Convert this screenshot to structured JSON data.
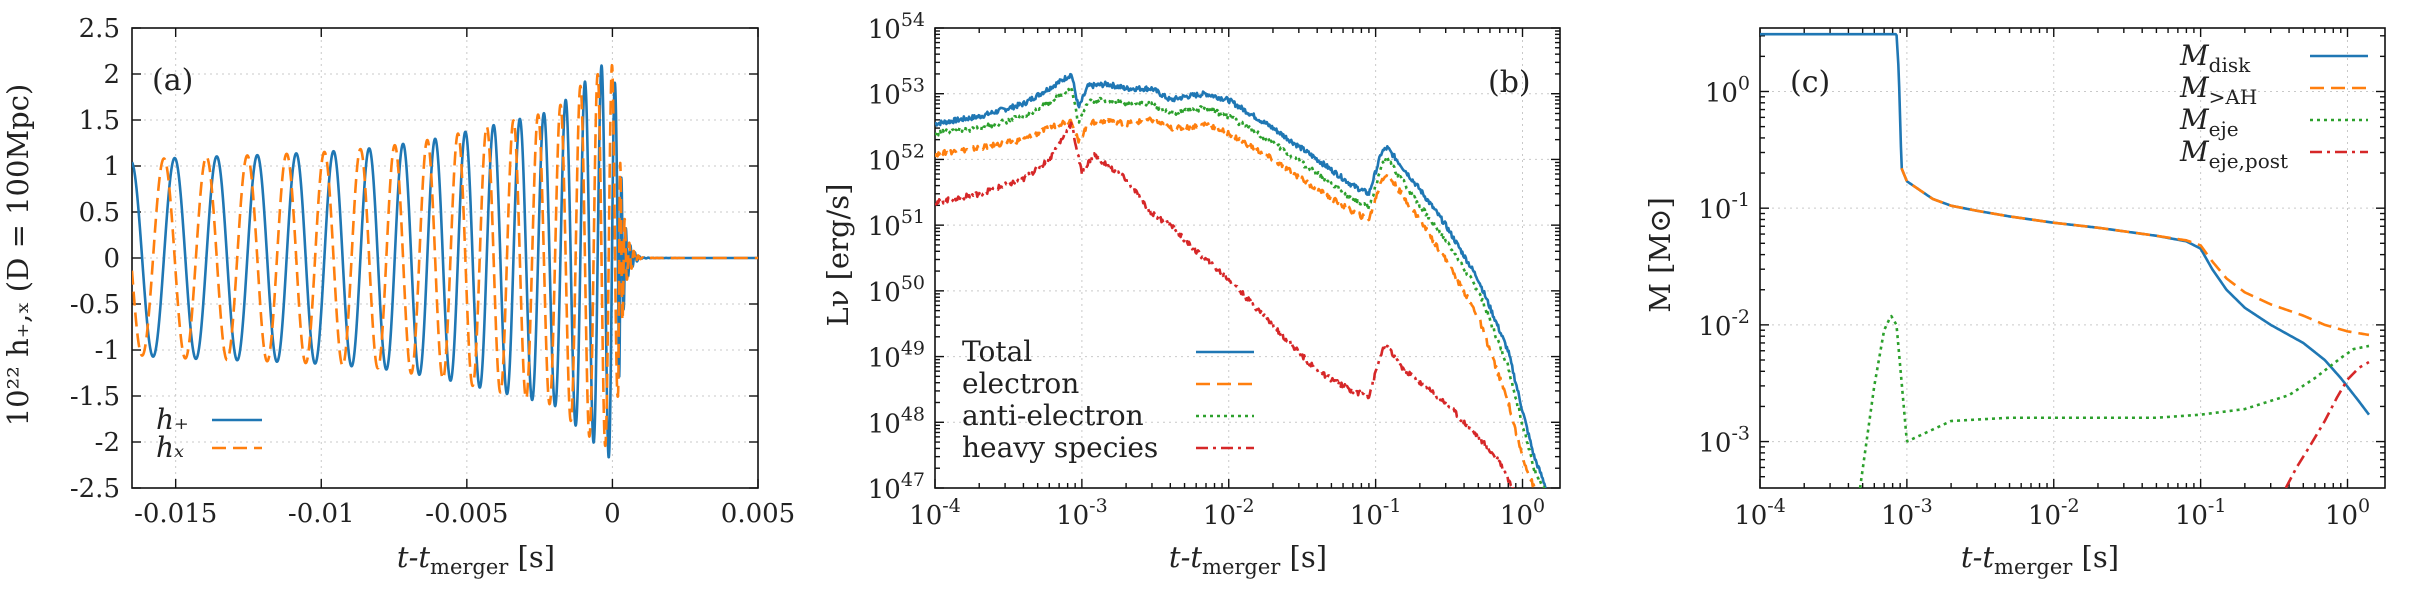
{
  "chart_data": [
    {
      "id": "a",
      "type": "line",
      "panel_tag": "(a)",
      "xlabel": {
        "base": "t-t",
        "sub": "merger",
        "unit": " [s]"
      },
      "ylabel": "10²² h₊,ₓ (D = 100Mpc)",
      "xscale": "linear",
      "yscale": "linear",
      "xlim": [
        -0.0165,
        0.005
      ],
      "ylim": [
        -2.5,
        2.5
      ],
      "xticks": [
        -0.015,
        -0.01,
        -0.005,
        0,
        0.005
      ],
      "xtick_labels": [
        "-0.015",
        "-0.01",
        "-0.005",
        "0",
        "0.005"
      ],
      "yticks": [
        -2.5,
        -2,
        -1.5,
        -1,
        -0.5,
        0,
        0.5,
        1,
        1.5,
        2,
        2.5
      ],
      "ytick_labels": [
        "-2.5",
        "-2",
        "-1.5",
        "-1",
        "-0.5",
        "0",
        "0.5",
        "1",
        "1.5",
        "2",
        "2.5"
      ],
      "grid": true,
      "legend_position": "bottom-left",
      "series": [
        {
          "name": "h+",
          "label": "h₊",
          "color": "#1f77b4",
          "dash": "solid",
          "x": [
            -0.0165,
            -0.0155,
            -0.014,
            -0.012,
            -0.01,
            -0.008,
            -0.006,
            -0.004,
            -0.002,
            -0.0015,
            -0.001,
            -0.0005,
            -0.0002,
            0.0,
            0.0005,
            0.001,
            0.005
          ],
          "amplitude": [
            1.05,
            1.08,
            1.1,
            1.12,
            1.15,
            1.2,
            1.3,
            1.45,
            1.6,
            1.75,
            1.9,
            2.05,
            2.15,
            2.2,
            0.5,
            0.05,
            0.0
          ]
        },
        {
          "name": "hx",
          "label": "hₓ",
          "color": "#ff7f0e",
          "dash": "dashed",
          "x": [
            -0.0165,
            -0.0155,
            -0.014,
            -0.012,
            -0.01,
            -0.008,
            -0.006,
            -0.004,
            -0.002,
            -0.0015,
            -0.001,
            -0.0005,
            -0.0002,
            0.0,
            0.0005,
            0.001,
            0.005
          ],
          "amplitude": [
            1.05,
            1.08,
            1.1,
            1.12,
            1.15,
            1.2,
            1.3,
            1.45,
            1.6,
            1.75,
            1.9,
            2.0,
            2.05,
            2.1,
            0.5,
            0.05,
            0.0
          ]
        }
      ],
      "phase_model": {
        "f0_hz": 500,
        "t_coalescence": 0.0006
      }
    },
    {
      "id": "b",
      "type": "line",
      "panel_tag": "(b)",
      "xlabel": {
        "base": "t-t",
        "sub": "merger",
        "unit": " [s]"
      },
      "ylabel": "Lν [erg/s]",
      "xscale": "log",
      "yscale": "log",
      "xlim": [
        0.0001,
        1.8
      ],
      "ylim": [
        1e+47,
        1e+54
      ],
      "xtick_exps": [
        -4,
        -3,
        -2,
        -1,
        0
      ],
      "xtick_labels": [
        "10-4",
        "10-3",
        "10-2",
        "10-1",
        "100"
      ],
      "ytick_exps": [
        47,
        48,
        49,
        50,
        51,
        52,
        53,
        54
      ],
      "ytick_labels": [
        "1047",
        "1048",
        "1049",
        "1050",
        "1051",
        "1052",
        "1053",
        "1054"
      ],
      "grid": true,
      "legend_position": "bottom-left",
      "series": [
        {
          "name": "Total",
          "color": "#1f77b4",
          "dash": "solid",
          "x": [
            0.0001,
            0.0002,
            0.0004,
            0.0007,
            0.00085,
            0.00095,
            0.0011,
            0.0015,
            0.002,
            0.003,
            0.004,
            0.005,
            0.007,
            0.01,
            0.02,
            0.04,
            0.07,
            0.09,
            0.11,
            0.12,
            0.15,
            0.2,
            0.3,
            0.5,
            0.8,
            1.0,
            1.2,
            1.45
          ],
          "y": [
            3.5e+52,
            4.5e+52,
            7e+52,
            1.5e+53,
            2e+53,
            6e+52,
            1.3e+53,
            1.4e+53,
            1.2e+53,
            1.2e+53,
            8e+52,
            9e+52,
            1e+53,
            8e+52,
            3e+52,
            1e+52,
            4e+51,
            3e+51,
            1.3e+52,
            1.5e+52,
            8e+51,
            3.5e+51,
            1e+51,
            1.5e+50,
            1.2e+49,
            1.5e+48,
            3e+47,
            1e+47
          ]
        },
        {
          "name": "electron",
          "color": "#ff7f0e",
          "dash": "dashed",
          "x": [
            0.0001,
            0.0002,
            0.0004,
            0.0007,
            0.00085,
            0.00095,
            0.0011,
            0.0015,
            0.002,
            0.003,
            0.004,
            0.005,
            0.007,
            0.01,
            0.02,
            0.04,
            0.07,
            0.09,
            0.11,
            0.12,
            0.15,
            0.2,
            0.3,
            0.5,
            0.8,
            1.0,
            1.2,
            1.4
          ],
          "y": [
            1.2e+52,
            1.5e+52,
            2e+52,
            3.5e+52,
            4e+52,
            1.8e+52,
            3.5e+52,
            4e+52,
            3.5e+52,
            4e+52,
            3e+52,
            3e+52,
            3.5e+52,
            2.5e+52,
            1e+52,
            3.5e+51,
            1.6e+51,
            1.2e+51,
            5e+51,
            6e+51,
            3e+51,
            1.2e+51,
            3e+50,
            4e+49,
            2e+48,
            3e+47,
            1e+47,
            5e+46
          ]
        },
        {
          "name": "anti-electron",
          "color": "#2ca02c",
          "dash": "dotted",
          "x": [
            0.0001,
            0.0002,
            0.0004,
            0.0007,
            0.00085,
            0.00095,
            0.0011,
            0.0015,
            0.002,
            0.003,
            0.004,
            0.005,
            0.007,
            0.01,
            0.02,
            0.04,
            0.07,
            0.09,
            0.11,
            0.12,
            0.15,
            0.2,
            0.3,
            0.5,
            0.8,
            1.0,
            1.2,
            1.45
          ],
          "y": [
            2.5e+52,
            3e+52,
            4.5e+52,
            9e+52,
            1.2e+53,
            3.5e+52,
            8e+52,
            8e+52,
            7e+52,
            7e+52,
            5e+52,
            5.5e+52,
            6e+52,
            4.5e+52,
            1.8e+52,
            6e+51,
            2.5e+51,
            1.8e+51,
            8e+51,
            1e+52,
            5e+51,
            2e+51,
            6e+50,
            1e+50,
            7e+48,
            9e+47,
            2e+47,
            8e+46
          ]
        },
        {
          "name": "heavy species",
          "color": "#d62728",
          "dash": "dashdot",
          "x": [
            0.0001,
            0.0002,
            0.0004,
            0.0006,
            0.00085,
            0.001,
            0.0012,
            0.0015,
            0.002,
            0.003,
            0.004,
            0.006,
            0.01,
            0.02,
            0.04,
            0.07,
            0.09,
            0.11,
            0.12,
            0.15,
            0.2,
            0.3,
            0.5,
            0.7,
            0.9
          ],
          "y": [
            2.2e+51,
            3e+51,
            5e+51,
            1e+52,
            3.5e+52,
            6e+51,
            1.2e+52,
            8e+51,
            5e+51,
            1.5e+51,
            1e+51,
            4e+50,
            1.5e+50,
            3e+49,
            6e+48,
            3e+48,
            2.5e+48,
            1.2e+49,
            1.4e+49,
            7e+48,
            4e+48,
            2e+48,
            6e+47,
            2.5e+47,
            8e+46
          ]
        }
      ]
    },
    {
      "id": "c",
      "type": "line",
      "panel_tag": "(c)",
      "xlabel": {
        "base": "t-t",
        "sub": "merger",
        "unit": " [s]"
      },
      "ylabel": "M [M⊙]",
      "xscale": "log",
      "yscale": "log",
      "xlim": [
        0.0001,
        1.8
      ],
      "ylim": [
        0.0004,
        3.5
      ],
      "xtick_exps": [
        -4,
        -3,
        -2,
        -1,
        0
      ],
      "xtick_labels": [
        "10-4",
        "10-3",
        "10-2",
        "10-1",
        "100"
      ],
      "ytick_exps": [
        -3,
        -2,
        -1,
        0
      ],
      "ytick_labels": [
        "10-3",
        "10-2",
        "10-1",
        "100"
      ],
      "grid": true,
      "legend_position": "top-right",
      "series": [
        {
          "name": "M_disk",
          "label_base": "M",
          "label_sub": "disk",
          "color": "#1f77b4",
          "dash": "solid",
          "x": [
            0.0001,
            0.00085,
            0.00088,
            0.00092,
            0.001,
            0.0015,
            0.002,
            0.003,
            0.005,
            0.01,
            0.02,
            0.05,
            0.08,
            0.1,
            0.12,
            0.15,
            0.2,
            0.3,
            0.5,
            0.7,
            0.9,
            1.2,
            1.4
          ],
          "y": [
            3.1,
            3.1,
            1.5,
            0.22,
            0.17,
            0.12,
            0.105,
            0.095,
            0.085,
            0.075,
            0.068,
            0.058,
            0.052,
            0.045,
            0.03,
            0.02,
            0.014,
            0.01,
            0.007,
            0.005,
            0.0035,
            0.0022,
            0.0017
          ]
        },
        {
          "name": "M_>AH",
          "label_base": "M",
          "label_sub": ">AH",
          "color": "#ff7f0e",
          "dash": "dashed",
          "x": [
            0.00092,
            0.001,
            0.0015,
            0.002,
            0.003,
            0.005,
            0.01,
            0.02,
            0.05,
            0.08,
            0.1,
            0.12,
            0.15,
            0.2,
            0.3,
            0.5,
            0.7,
            1.0,
            1.4
          ],
          "y": [
            0.22,
            0.17,
            0.12,
            0.105,
            0.095,
            0.085,
            0.075,
            0.068,
            0.058,
            0.053,
            0.048,
            0.035,
            0.025,
            0.019,
            0.015,
            0.012,
            0.01,
            0.0088,
            0.0082
          ]
        },
        {
          "name": "M_eje",
          "label_base": "M",
          "label_sub": "eje",
          "color": "#2ca02c",
          "dash": "dotted",
          "x": [
            0.00048,
            0.0006,
            0.0007,
            0.00078,
            0.00085,
            0.001,
            0.002,
            0.005,
            0.01,
            0.05,
            0.1,
            0.2,
            0.4,
            0.6,
            0.9,
            1.1,
            1.4
          ],
          "y": [
            0.0004,
            0.003,
            0.009,
            0.012,
            0.01,
            0.001,
            0.0015,
            0.0016,
            0.0016,
            0.0016,
            0.0017,
            0.0019,
            0.0025,
            0.0035,
            0.0052,
            0.0062,
            0.0066
          ]
        },
        {
          "name": "M_eje,post",
          "label_base": "M",
          "label_sub": "eje,post",
          "color": "#d62728",
          "dash": "dashdot",
          "x": [
            0.38,
            0.45,
            0.55,
            0.7,
            0.85,
            1.0,
            1.2,
            1.4
          ],
          "y": [
            0.0004,
            0.0006,
            0.0009,
            0.0015,
            0.0024,
            0.0034,
            0.0043,
            0.0048
          ]
        }
      ]
    }
  ]
}
